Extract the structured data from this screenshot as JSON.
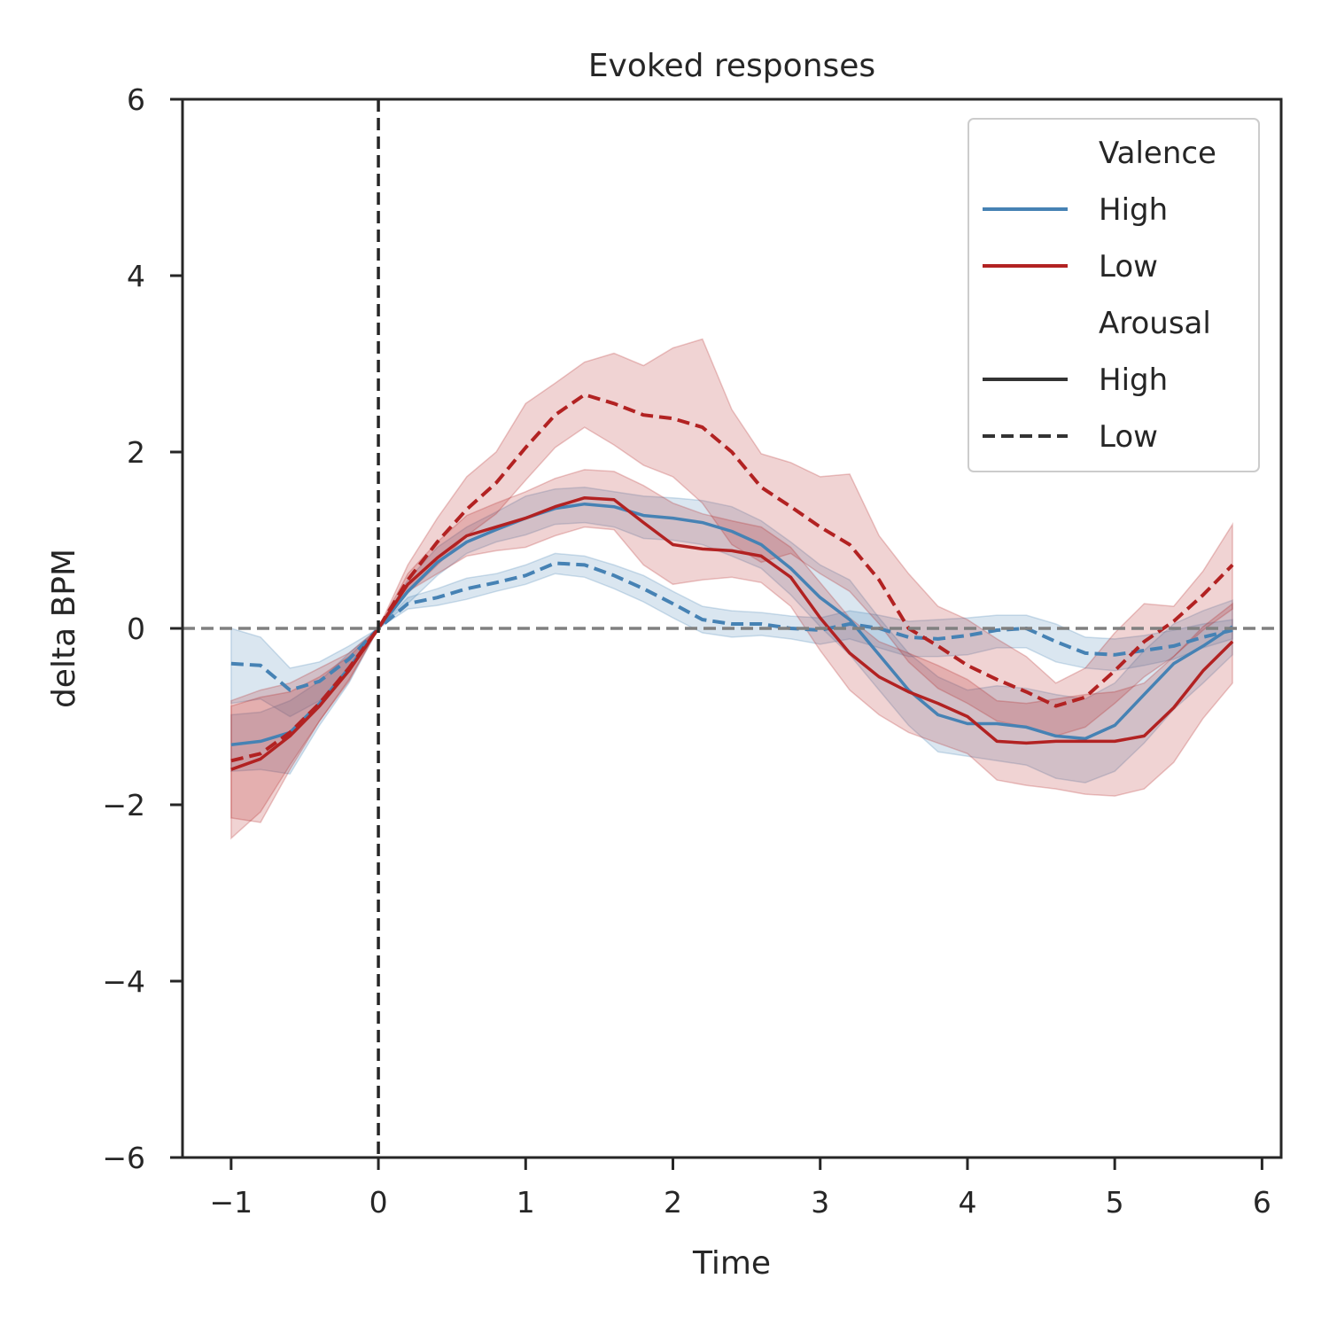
{
  "colors": {
    "high_valence": "#4682b4",
    "low_valence": "#b22222",
    "arousal_line": "#333333",
    "zero_line": "#808080",
    "onset_line": "#262626",
    "axis": "#262626"
  },
  "chart_data": {
    "type": "line",
    "title": "Evoked responses",
    "xlabel": "Time",
    "ylabel": "delta BPM",
    "xlim": [
      -1.33,
      6.13
    ],
    "ylim": [
      -6,
      6
    ],
    "xticks": [
      -1,
      0,
      1,
      2,
      3,
      4,
      5,
      6
    ],
    "xtick_labels": [
      "−1",
      "0",
      "1",
      "2",
      "3",
      "4",
      "5",
      "6"
    ],
    "yticks": [
      -6,
      -4,
      -2,
      0,
      2,
      4,
      6
    ],
    "ytick_labels": [
      "−6",
      "−4",
      "−2",
      "0",
      "2",
      "4",
      "6"
    ],
    "grid": false,
    "legend_position": "top-right",
    "reference_lines": {
      "vertical_x": 0,
      "horizontal_y": 0
    },
    "legend": [
      {
        "label": "Valence",
        "kind": "header"
      },
      {
        "label": "High",
        "kind": "line",
        "color_key": "high_valence",
        "dash": "solid"
      },
      {
        "label": "Low",
        "kind": "line",
        "color_key": "low_valence",
        "dash": "solid"
      },
      {
        "label": "Arousal",
        "kind": "header"
      },
      {
        "label": "High",
        "kind": "line",
        "color_key": "arousal_line",
        "dash": "solid"
      },
      {
        "label": "Low",
        "kind": "line",
        "color_key": "arousal_line",
        "dash": "dashed"
      }
    ],
    "x": [
      -1.0,
      -0.8,
      -0.6,
      -0.4,
      -0.2,
      0.0,
      0.2,
      0.4,
      0.6,
      0.8,
      1.0,
      1.2,
      1.4,
      1.6,
      1.8,
      2.0,
      2.2,
      2.4,
      2.6,
      2.8,
      3.0,
      3.2,
      3.4,
      3.6,
      3.8,
      4.0,
      4.2,
      4.4,
      4.6,
      4.8,
      5.0,
      5.2,
      5.4,
      5.6,
      5.8
    ],
    "series": [
      {
        "valence": "High",
        "arousal": "High",
        "color_key": "high_valence",
        "dash": "solid",
        "values": [
          -1.32,
          -1.28,
          -1.18,
          -0.85,
          -0.45,
          0.0,
          0.42,
          0.75,
          0.98,
          1.12,
          1.25,
          1.36,
          1.41,
          1.38,
          1.28,
          1.25,
          1.2,
          1.1,
          0.95,
          0.68,
          0.35,
          0.1,
          -0.3,
          -0.7,
          -0.98,
          -1.08,
          -1.08,
          -1.12,
          -1.22,
          -1.25,
          -1.1,
          -0.75,
          -0.4,
          -0.2,
          0.02
        ],
        "lower": [
          -1.62,
          -1.6,
          -1.65,
          -1.1,
          -0.62,
          0.0,
          0.28,
          0.6,
          0.85,
          0.98,
          1.06,
          1.18,
          1.2,
          1.15,
          1.02,
          1.0,
          0.95,
          0.82,
          0.68,
          0.38,
          0.02,
          -0.3,
          -0.7,
          -1.1,
          -1.4,
          -1.45,
          -1.5,
          -1.55,
          -1.7,
          -1.75,
          -1.62,
          -1.3,
          -0.92,
          -0.62,
          -0.3
        ],
        "upper": [
          -0.98,
          -0.95,
          -0.82,
          -0.6,
          -0.28,
          0.0,
          0.55,
          0.92,
          1.15,
          1.32,
          1.5,
          1.58,
          1.6,
          1.55,
          1.5,
          1.48,
          1.45,
          1.38,
          1.22,
          0.98,
          0.72,
          0.55,
          0.12,
          -0.28,
          -0.55,
          -0.7,
          -0.65,
          -0.68,
          -0.75,
          -0.8,
          -0.62,
          -0.25,
          0.05,
          0.2,
          0.32
        ]
      },
      {
        "valence": "High",
        "arousal": "Low",
        "color_key": "high_valence",
        "dash": "dashed",
        "values": [
          -0.4,
          -0.42,
          -0.7,
          -0.6,
          -0.35,
          0.0,
          0.28,
          0.35,
          0.45,
          0.52,
          0.6,
          0.74,
          0.72,
          0.6,
          0.45,
          0.28,
          0.1,
          0.05,
          0.05,
          0.0,
          -0.02,
          0.05,
          0.0,
          -0.1,
          -0.12,
          -0.08,
          -0.02,
          0.0,
          -0.15,
          -0.28,
          -0.3,
          -0.25,
          -0.2,
          -0.1,
          -0.02
        ],
        "lower": [
          -0.85,
          -0.8,
          -1.0,
          -0.82,
          -0.48,
          0.0,
          0.22,
          0.26,
          0.33,
          0.42,
          0.5,
          0.62,
          0.58,
          0.45,
          0.3,
          0.12,
          -0.05,
          -0.1,
          -0.08,
          -0.12,
          -0.18,
          -0.12,
          -0.22,
          -0.32,
          -0.32,
          -0.3,
          -0.22,
          -0.22,
          -0.38,
          -0.45,
          -0.48,
          -0.42,
          -0.35,
          -0.22,
          -0.12
        ],
        "upper": [
          0.0,
          -0.1,
          -0.45,
          -0.38,
          -0.2,
          0.0,
          0.35,
          0.45,
          0.57,
          0.62,
          0.72,
          0.85,
          0.82,
          0.72,
          0.6,
          0.42,
          0.25,
          0.2,
          0.18,
          0.14,
          0.12,
          0.2,
          0.15,
          0.08,
          0.1,
          0.12,
          0.15,
          0.15,
          0.05,
          -0.1,
          -0.12,
          -0.08,
          -0.02,
          0.05,
          0.1
        ]
      },
      {
        "valence": "Low",
        "arousal": "High",
        "color_key": "low_valence",
        "dash": "solid",
        "values": [
          -1.6,
          -1.48,
          -1.22,
          -0.88,
          -0.48,
          0.0,
          0.5,
          0.8,
          1.05,
          1.15,
          1.25,
          1.38,
          1.48,
          1.46,
          1.2,
          0.95,
          0.9,
          0.88,
          0.82,
          0.58,
          0.12,
          -0.28,
          -0.55,
          -0.72,
          -0.85,
          -1.0,
          -1.28,
          -1.3,
          -1.28,
          -1.28,
          -1.28,
          -1.22,
          -0.9,
          -0.48,
          -0.15
        ],
        "lower": [
          -2.15,
          -2.2,
          -1.6,
          -1.05,
          -0.6,
          0.0,
          0.42,
          0.62,
          0.82,
          0.88,
          0.92,
          1.05,
          1.15,
          1.12,
          0.72,
          0.5,
          0.55,
          0.58,
          0.52,
          0.25,
          -0.25,
          -0.7,
          -0.98,
          -1.18,
          -1.3,
          -1.42,
          -1.72,
          -1.78,
          -1.82,
          -1.88,
          -1.9,
          -1.82,
          -1.52,
          -1.02,
          -0.62
        ],
        "upper": [
          -0.88,
          -0.78,
          -0.72,
          -0.55,
          -0.32,
          0.0,
          0.62,
          0.98,
          1.28,
          1.42,
          1.55,
          1.7,
          1.8,
          1.78,
          1.62,
          1.42,
          1.3,
          1.22,
          1.15,
          0.92,
          0.52,
          0.12,
          -0.15,
          -0.28,
          -0.42,
          -0.58,
          -0.82,
          -0.85,
          -0.8,
          -0.75,
          -0.72,
          -0.62,
          -0.32,
          0.02,
          0.28
        ]
      },
      {
        "valence": "Low",
        "arousal": "Low",
        "color_key": "low_valence",
        "dash": "dashed",
        "values": [
          -1.5,
          -1.42,
          -1.18,
          -0.85,
          -0.45,
          0.0,
          0.55,
          0.98,
          1.35,
          1.65,
          2.05,
          2.42,
          2.65,
          2.55,
          2.42,
          2.38,
          2.28,
          2.0,
          1.6,
          1.38,
          1.15,
          0.95,
          0.55,
          0.0,
          -0.2,
          -0.42,
          -0.58,
          -0.72,
          -0.88,
          -0.78,
          -0.48,
          -0.15,
          0.08,
          0.38,
          0.72
        ],
        "lower": [
          -2.38,
          -2.08,
          -1.55,
          -1.05,
          -0.58,
          0.0,
          0.4,
          0.72,
          1.05,
          1.3,
          1.68,
          2.05,
          2.28,
          2.08,
          1.85,
          1.72,
          1.42,
          0.95,
          0.75,
          0.85,
          0.62,
          0.42,
          0.05,
          -0.38,
          -0.68,
          -0.85,
          -1.05,
          -1.12,
          -1.22,
          -1.12,
          -0.85,
          -0.55,
          -0.32,
          -0.02,
          0.22
        ],
        "upper": [
          -0.82,
          -0.7,
          -0.62,
          -0.45,
          -0.28,
          0.0,
          0.72,
          1.25,
          1.72,
          2.0,
          2.55,
          2.78,
          3.02,
          3.12,
          2.98,
          3.18,
          3.28,
          2.48,
          1.98,
          1.88,
          1.72,
          1.75,
          1.05,
          0.62,
          0.25,
          0.1,
          -0.12,
          -0.32,
          -0.62,
          -0.45,
          -0.05,
          0.28,
          0.25,
          0.65,
          1.18
        ]
      }
    ]
  }
}
